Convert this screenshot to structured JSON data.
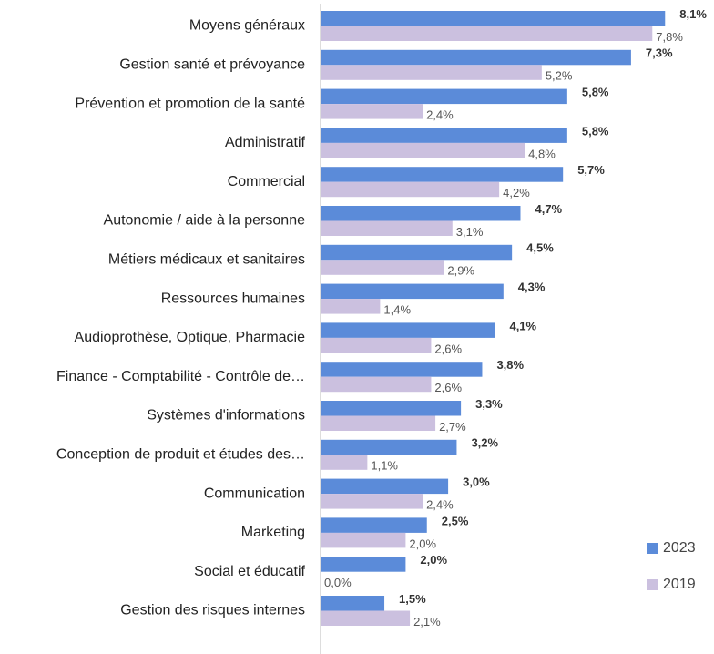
{
  "chart_data": {
    "type": "bar",
    "orientation": "horizontal",
    "legend": "right",
    "categories": [
      "Moyens généraux",
      "Gestion santé et prévoyance",
      "Prévention et promotion de la santé",
      "Administratif",
      "Commercial",
      "Autonomie / aide à la personne",
      "Métiers médicaux et sanitaires",
      "Ressources humaines",
      "Audioprothèse, Optique, Pharmacie",
      "Finance - Comptabilité - Contrôle de…",
      "Systèmes d'informations",
      "Conception de produit et études des…",
      "Communication",
      "Marketing",
      "Social et éducatif",
      "Gestion des risques internes"
    ],
    "series": [
      {
        "name": "2023",
        "color": "#5b8bd9",
        "values": [
          8.1,
          7.3,
          5.8,
          5.8,
          5.7,
          4.7,
          4.5,
          4.3,
          4.1,
          3.8,
          3.3,
          3.2,
          3.0,
          2.5,
          2.0,
          1.5
        ],
        "value_labels": [
          "8,1%",
          "7,3%",
          "5,8%",
          "5,8%",
          "5,7%",
          "4,7%",
          "4,5%",
          "4,3%",
          "4,1%",
          "3,8%",
          "3,3%",
          "3,2%",
          "3,0%",
          "2,5%",
          "2,0%",
          "1,5%"
        ]
      },
      {
        "name": "2019",
        "color": "#cbc0df",
        "values": [
          7.8,
          5.2,
          2.4,
          4.8,
          4.2,
          3.1,
          2.9,
          1.4,
          2.6,
          2.6,
          2.7,
          1.1,
          2.4,
          2.0,
          0.0,
          2.1
        ],
        "value_labels": [
          "7,8%",
          "5,2%",
          "2,4%",
          "4,8%",
          "4,2%",
          "3,1%",
          "2,9%",
          "1,4%",
          "2,6%",
          "2,6%",
          "2,7%",
          "1,1%",
          "2,4%",
          "2,0%",
          "0,0%",
          "2,1%"
        ]
      }
    ]
  }
}
